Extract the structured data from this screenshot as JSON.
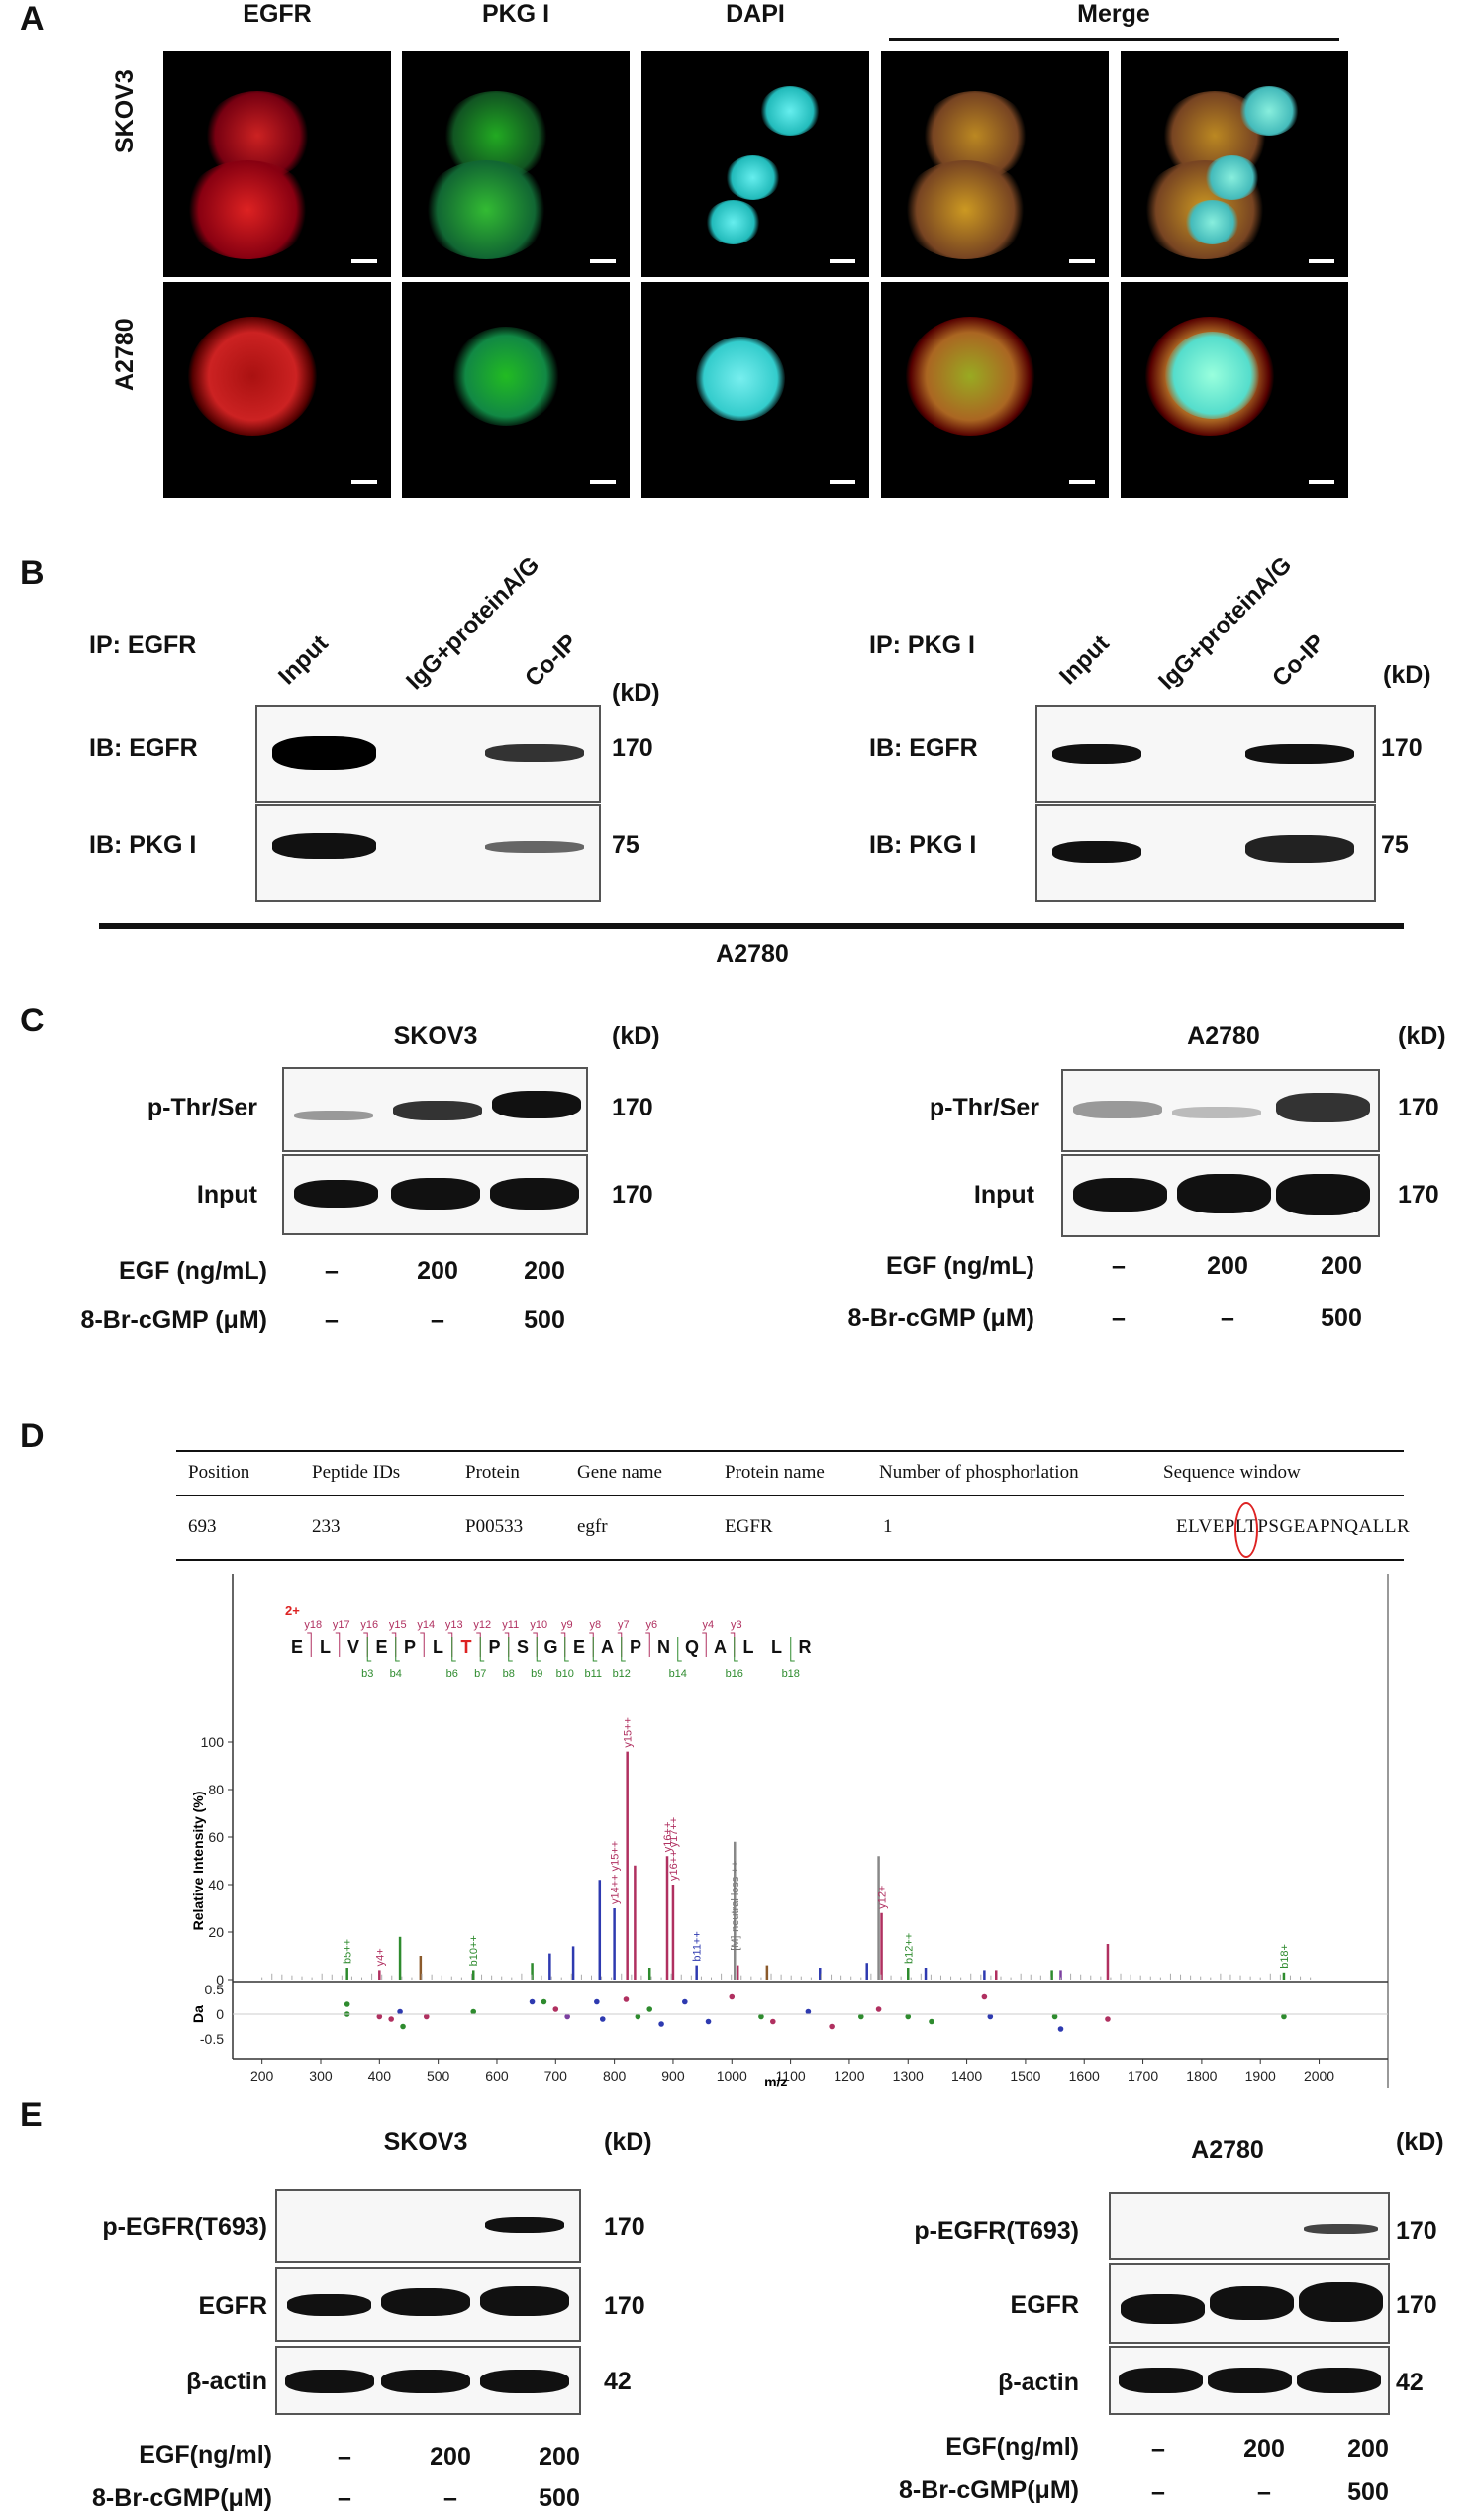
{
  "panelA": {
    "label": "A",
    "columns": [
      "EGFR",
      "PKG I",
      "DAPI"
    ],
    "merge": "Merge",
    "rows": [
      "SKOV3",
      "A2780"
    ]
  },
  "panelB": {
    "label": "B",
    "left": {
      "ip": "IP: EGFR",
      "lanes": [
        "Input",
        "IgG+proteinA/G",
        "Co-IP"
      ],
      "kd": "(kD)",
      "rows": [
        {
          "ib": "IB: EGFR",
          "mw": "170"
        },
        {
          "ib": "IB: PKG I",
          "mw": "75"
        }
      ]
    },
    "right": {
      "ip": "IP: PKG I",
      "lanes": [
        "Input",
        "IgG+proteinA/G",
        "Co-IP"
      ],
      "kd": "(kD)",
      "rows": [
        {
          "ib": "IB: EGFR",
          "mw": "170"
        },
        {
          "ib": "IB: PKG I",
          "mw": "75"
        }
      ]
    },
    "cell_line": "A2780"
  },
  "panelC": {
    "label": "C",
    "left": {
      "title": "SKOV3",
      "kd": "(kD)",
      "rows": [
        {
          "name": "p-Thr/Ser",
          "mw": "170"
        },
        {
          "name": "Input",
          "mw": "170"
        }
      ],
      "treat": [
        {
          "name": "EGF (ng/mL)",
          "vals": [
            "–",
            "200",
            "200"
          ]
        },
        {
          "name": "8-Br-cGMP (μM)",
          "vals": [
            "–",
            "–",
            "500"
          ]
        }
      ]
    },
    "right": {
      "title": "A2780",
      "kd": "(kD)",
      "rows": [
        {
          "name": "p-Thr/Ser",
          "mw": "170"
        },
        {
          "name": "Input",
          "mw": "170"
        }
      ],
      "treat": [
        {
          "name": "EGF (ng/mL)",
          "vals": [
            "–",
            "200",
            "200"
          ]
        },
        {
          "name": "8-Br-cGMP (μM)",
          "vals": [
            "–",
            "–",
            "500"
          ]
        }
      ]
    }
  },
  "panelD": {
    "label": "D",
    "table": {
      "headers": [
        "Position",
        "Peptide IDs",
        "Protein",
        "Gene name",
        "Protein name",
        "Number of phosphorlation",
        "Sequence window"
      ],
      "row": [
        "693",
        "233",
        "P00533",
        "egfr",
        "EGFR",
        "1",
        "ELVEPLTPSGEAPNQALLR"
      ]
    },
    "charge": "2+",
    "sequence": [
      "E",
      "L",
      "V",
      "E",
      "P",
      "L",
      "T",
      "P",
      "S",
      "G",
      "E",
      "A",
      "P",
      "N",
      "Q",
      "A",
      "L",
      "L",
      "R"
    ],
    "y_ions": [
      "y18",
      "y17",
      "y16",
      "y15",
      "y14",
      "y13",
      "y12",
      "y11",
      "y10",
      "y9",
      "y8",
      "y7",
      "y6",
      "y4",
      "y3"
    ],
    "b_ions": [
      "b3",
      "b4",
      "b6",
      "b7",
      "b8",
      "b9",
      "b10",
      "b11",
      "b12",
      "b14",
      "b16",
      "b18"
    ],
    "neutral_loss": "[M]-neutral loss ++",
    "peak_labels": [
      "y15++",
      "y4+",
      "y16++",
      "b10++",
      "b11++",
      "b5++",
      "b12++",
      "b18+",
      "y12+",
      "y14++ y15++",
      "y16++ y17++"
    ]
  },
  "panelE": {
    "label": "E",
    "left": {
      "title": "SKOV3",
      "kd": "(kD)",
      "rows": [
        {
          "name": "p-EGFR(T693)",
          "mw": "170"
        },
        {
          "name": "EGFR",
          "mw": "170"
        },
        {
          "name": "β-actin",
          "mw": "42"
        }
      ],
      "treat": [
        {
          "name": "EGF(ng/ml)",
          "vals": [
            "–",
            "200",
            "200"
          ]
        },
        {
          "name": "8-Br-cGMP(μM)",
          "vals": [
            "–",
            "–",
            "500"
          ]
        }
      ]
    },
    "right": {
      "title": "A2780",
      "kd": "(kD)",
      "rows": [
        {
          "name": "p-EGFR(T693)",
          "mw": "170"
        },
        {
          "name": "EGFR",
          "mw": "170"
        },
        {
          "name": "β-actin",
          "mw": "42"
        }
      ],
      "treat": [
        {
          "name": "EGF(ng/ml)",
          "vals": [
            "–",
            "200",
            "200"
          ]
        },
        {
          "name": "8-Br-cGMP(μM)",
          "vals": [
            "–",
            "–",
            "500"
          ]
        }
      ]
    }
  },
  "chart_data": {
    "type": "bar",
    "xlabel": "m/z",
    "ylabel": "Relative Intensity (%)",
    "xlim": [
      150,
      2080
    ],
    "ylim": [
      0,
      100
    ],
    "xticks": [
      200,
      300,
      400,
      500,
      600,
      700,
      800,
      900,
      1000,
      1100,
      1200,
      1300,
      1400,
      1500,
      1600,
      1700,
      1800,
      1900,
      2000
    ],
    "yticks": [
      0,
      20,
      40,
      60,
      80,
      100
    ],
    "peaks": [
      {
        "x": 345,
        "y": 5,
        "color": "#2e8b2e"
      },
      {
        "x": 400,
        "y": 4,
        "color": "#b03060"
      },
      {
        "x": 435,
        "y": 18,
        "color": "#2e8b2e"
      },
      {
        "x": 470,
        "y": 10,
        "color": "#8b5a2b"
      },
      {
        "x": 560,
        "y": 4,
        "color": "#2e8b2e"
      },
      {
        "x": 660,
        "y": 7,
        "color": "#2e8b2e"
      },
      {
        "x": 690,
        "y": 11,
        "color": "#2e3ab0"
      },
      {
        "x": 730,
        "y": 14,
        "color": "#2e3ab0"
      },
      {
        "x": 775,
        "y": 42,
        "color": "#2e3ab0"
      },
      {
        "x": 800,
        "y": 30,
        "color": "#2e3ab0"
      },
      {
        "x": 822,
        "y": 96,
        "color": "#b03060"
      },
      {
        "x": 835,
        "y": 48,
        "color": "#b03060"
      },
      {
        "x": 860,
        "y": 5,
        "color": "#2e8b2e"
      },
      {
        "x": 890,
        "y": 52,
        "color": "#b03060"
      },
      {
        "x": 900,
        "y": 40,
        "color": "#b03060"
      },
      {
        "x": 940,
        "y": 6,
        "color": "#2e3ab0"
      },
      {
        "x": 1005,
        "y": 58,
        "color": "#888888"
      },
      {
        "x": 1010,
        "y": 6,
        "color": "#b03060"
      },
      {
        "x": 1060,
        "y": 6,
        "color": "#8b5a2b"
      },
      {
        "x": 1150,
        "y": 5,
        "color": "#2e3ab0"
      },
      {
        "x": 1230,
        "y": 7,
        "color": "#2e3ab0"
      },
      {
        "x": 1250,
        "y": 52,
        "color": "#888888"
      },
      {
        "x": 1255,
        "y": 28,
        "color": "#b03060"
      },
      {
        "x": 1300,
        "y": 5,
        "color": "#2e8b2e"
      },
      {
        "x": 1330,
        "y": 5,
        "color": "#2e3ab0"
      },
      {
        "x": 1430,
        "y": 4,
        "color": "#2e3ab0"
      },
      {
        "x": 1450,
        "y": 4,
        "color": "#b03060"
      },
      {
        "x": 1545,
        "y": 4,
        "color": "#2e8b2e"
      },
      {
        "x": 1560,
        "y": 4,
        "color": "#7b3fa0"
      },
      {
        "x": 1640,
        "y": 15,
        "color": "#b03060"
      },
      {
        "x": 1940,
        "y": 3,
        "color": "#2e8b2e"
      }
    ],
    "error_axis": {
      "label": "Da",
      "yticks": [
        0.5,
        0,
        -0.5
      ]
    },
    "errors": [
      {
        "x": 345,
        "y": 0.2,
        "color": "#2e8b2e"
      },
      {
        "x": 345,
        "y": 0.0,
        "color": "#2e8b2e"
      },
      {
        "x": 400,
        "y": -0.05,
        "color": "#b03060"
      },
      {
        "x": 420,
        "y": -0.1,
        "color": "#b03060"
      },
      {
        "x": 435,
        "y": 0.05,
        "color": "#2e3ab0"
      },
      {
        "x": 440,
        "y": -0.25,
        "color": "#2e8b2e"
      },
      {
        "x": 480,
        "y": -0.05,
        "color": "#b03060"
      },
      {
        "x": 560,
        "y": 0.05,
        "color": "#2e8b2e"
      },
      {
        "x": 660,
        "y": 0.25,
        "color": "#2e3ab0"
      },
      {
        "x": 680,
        "y": 0.25,
        "color": "#2e8b2e"
      },
      {
        "x": 700,
        "y": 0.1,
        "color": "#b03060"
      },
      {
        "x": 720,
        "y": -0.05,
        "color": "#7b3fa0"
      },
      {
        "x": 770,
        "y": 0.25,
        "color": "#2e3ab0"
      },
      {
        "x": 780,
        "y": -0.1,
        "color": "#2e3ab0"
      },
      {
        "x": 820,
        "y": 0.3,
        "color": "#b03060"
      },
      {
        "x": 840,
        "y": -0.05,
        "color": "#2e8b2e"
      },
      {
        "x": 860,
        "y": 0.1,
        "color": "#2e8b2e"
      },
      {
        "x": 880,
        "y": -0.2,
        "color": "#2e3ab0"
      },
      {
        "x": 920,
        "y": 0.25,
        "color": "#2e3ab0"
      },
      {
        "x": 960,
        "y": -0.15,
        "color": "#2e3ab0"
      },
      {
        "x": 1000,
        "y": 0.35,
        "color": "#b03060"
      },
      {
        "x": 1050,
        "y": -0.05,
        "color": "#2e8b2e"
      },
      {
        "x": 1070,
        "y": -0.15,
        "color": "#b03060"
      },
      {
        "x": 1130,
        "y": 0.05,
        "color": "#2e3ab0"
      },
      {
        "x": 1170,
        "y": -0.25,
        "color": "#b03060"
      },
      {
        "x": 1220,
        "y": -0.05,
        "color": "#2e8b2e"
      },
      {
        "x": 1250,
        "y": 0.1,
        "color": "#b03060"
      },
      {
        "x": 1300,
        "y": -0.05,
        "color": "#2e8b2e"
      },
      {
        "x": 1340,
        "y": -0.15,
        "color": "#2e8b2e"
      },
      {
        "x": 1430,
        "y": 0.35,
        "color": "#b03060"
      },
      {
        "x": 1440,
        "y": -0.05,
        "color": "#2e3ab0"
      },
      {
        "x": 1550,
        "y": -0.05,
        "color": "#2e8b2e"
      },
      {
        "x": 1560,
        "y": -0.3,
        "color": "#2e3ab0"
      },
      {
        "x": 1640,
        "y": -0.1,
        "color": "#b03060"
      },
      {
        "x": 1940,
        "y": -0.05,
        "color": "#2e8b2e"
      }
    ]
  }
}
